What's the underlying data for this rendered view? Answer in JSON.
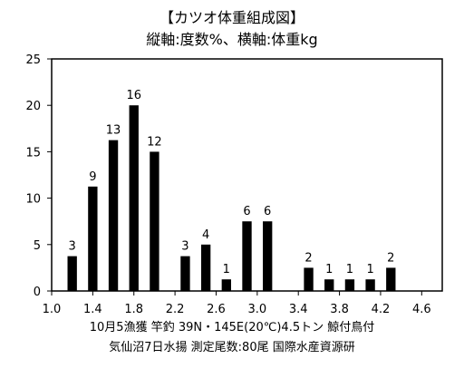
{
  "chart_data": {
    "type": "bar",
    "title": "【カツオ体重組成図】",
    "subtitle": "縦軸:度数%、横軸:体重kg",
    "xlabel": "体重kg",
    "ylabel": "度数%",
    "x_ticks": [
      "1.0",
      "1.4",
      "1.8",
      "2.2",
      "2.6",
      "3.0",
      "3.4",
      "3.8",
      "4.2",
      "4.6"
    ],
    "y_ticks": [
      "0",
      "5",
      "10",
      "15",
      "20",
      "25"
    ],
    "ylim": [
      0,
      25
    ],
    "xlim": [
      1.0,
      4.8
    ],
    "bin_width": 0.1,
    "bars": [
      {
        "x": 1.2,
        "count": 3
      },
      {
        "x": 1.4,
        "count": 9
      },
      {
        "x": 1.6,
        "count": 13
      },
      {
        "x": 1.8,
        "count": 16
      },
      {
        "x": 2.0,
        "count": 12
      },
      {
        "x": 2.3,
        "count": 3
      },
      {
        "x": 2.5,
        "count": 4
      },
      {
        "x": 2.7,
        "count": 1
      },
      {
        "x": 2.9,
        "count": 6
      },
      {
        "x": 3.1,
        "count": 6
      },
      {
        "x": 3.5,
        "count": 2
      },
      {
        "x": 3.7,
        "count": 1
      },
      {
        "x": 3.9,
        "count": 1
      },
      {
        "x": 4.1,
        "count": 1
      },
      {
        "x": 4.3,
        "count": 2
      }
    ],
    "total": 80,
    "bar_color": "#000000"
  },
  "footer": {
    "line1": "10月5漁獲  竿釣  39N・145E(20℃)4.5トン 鯨付鳥付",
    "line2": "気仙沼7日水揚  測定尾数:80尾  国際水産資源研"
  }
}
